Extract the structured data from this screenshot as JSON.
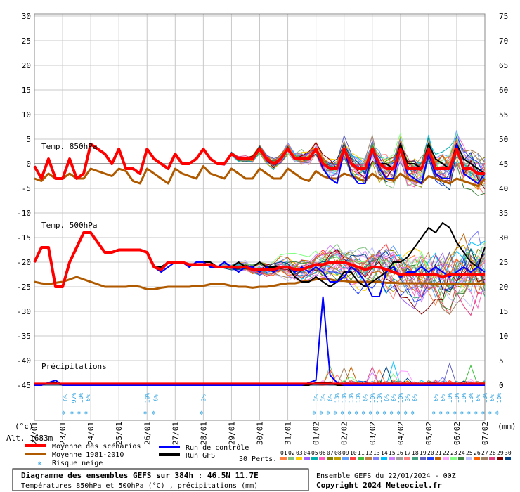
{
  "chart_data": {
    "type": "line",
    "left_axis_ticks": [
      "30",
      "25",
      "20",
      "15",
      "10",
      "5",
      "0",
      "-5",
      "-10",
      "-15",
      "-20",
      "-25",
      "-30",
      "-35",
      "-40",
      "-45"
    ],
    "right_axis_ticks": [
      "75",
      "70",
      "65",
      "60",
      "55",
      "50",
      "45",
      "40",
      "35",
      "30",
      "25",
      "20",
      "15",
      "10",
      "5",
      "0"
    ],
    "ylim_temp": [
      -45,
      30
    ],
    "ylim_precip": [
      0,
      75
    ],
    "left_unit": "(°c)",
    "right_unit": "(mm)",
    "x_tick_labels": [
      "22/01",
      "23/01",
      "24/01",
      "25/01",
      "26/01",
      "27/01",
      "28/01",
      "29/01",
      "30/01",
      "31/01",
      "01/02",
      "02/02",
      "03/02",
      "04/02",
      "05/02",
      "06/02",
      "07/02"
    ],
    "label_850": "Temp. 850hPa",
    "label_500": "Temp. 500hPa",
    "label_precip": "Précipitations",
    "altitude": "Alt. 1683m",
    "snow_labels": [
      {
        "x": 1.1,
        "text": "6%"
      },
      {
        "x": 1.4,
        "text": "97%"
      },
      {
        "x": 1.65,
        "text": "10%"
      },
      {
        "x": 1.9,
        "text": "6%"
      },
      {
        "x": 4.0,
        "text": "10%"
      },
      {
        "x": 4.3,
        "text": "6%"
      },
      {
        "x": 6.0,
        "text": "3%"
      },
      {
        "x": 10.0,
        "text": "3%"
      },
      {
        "x": 10.25,
        "text": "3%"
      },
      {
        "x": 10.5,
        "text": "6%"
      },
      {
        "x": 10.75,
        "text": "13%"
      },
      {
        "x": 11.0,
        "text": "13%"
      },
      {
        "x": 11.25,
        "text": "13%"
      },
      {
        "x": 11.5,
        "text": "10%"
      },
      {
        "x": 11.75,
        "text": "6%"
      },
      {
        "x": 12.0,
        "text": "10%"
      },
      {
        "x": 12.25,
        "text": "13%"
      },
      {
        "x": 12.5,
        "text": "6%"
      },
      {
        "x": 12.75,
        "text": "6%"
      },
      {
        "x": 13.0,
        "text": "10%"
      },
      {
        "x": 13.25,
        "text": "3%"
      },
      {
        "x": 13.5,
        "text": "6%"
      },
      {
        "x": 14.25,
        "text": "6%"
      },
      {
        "x": 14.5,
        "text": "6%"
      },
      {
        "x": 14.75,
        "text": "10%"
      },
      {
        "x": 15.0,
        "text": "10%"
      },
      {
        "x": 15.25,
        "text": "10%"
      },
      {
        "x": 15.5,
        "text": "13%"
      },
      {
        "x": 15.75,
        "text": "6%"
      },
      {
        "x": 16.0,
        "text": "13%"
      },
      {
        "x": 16.25,
        "text": "6%"
      },
      {
        "x": 16.5,
        "text": "10%"
      }
    ],
    "series": [
      {
        "name": "Moyenne des scénarios",
        "color": "#ff0000",
        "width": 4,
        "x850": [
          0,
          0.25,
          0.5,
          0.75,
          1,
          1.25,
          1.5,
          1.75,
          2,
          2.25,
          2.5,
          2.75,
          3,
          3.25,
          3.5,
          3.75,
          4,
          4.25,
          4.5,
          4.75,
          5,
          5.25,
          5.5,
          5.75,
          6,
          6.25,
          6.5,
          6.75,
          7,
          7.25,
          7.5,
          7.75,
          8,
          8.25,
          8.5,
          8.75,
          9,
          9.25,
          9.5,
          9.75,
          10,
          10.25,
          10.5,
          10.75,
          11,
          11.25,
          11.5,
          11.75,
          12,
          12.25,
          12.5,
          12.75,
          13,
          13.25,
          13.5,
          13.75,
          14,
          14.25,
          14.5,
          14.75,
          15,
          15.25,
          15.5,
          15.75,
          16
        ],
        "y850": [
          -0.5,
          -3,
          1,
          -3,
          -3,
          1,
          -3,
          -2,
          4,
          3,
          2,
          0,
          3,
          -1,
          -1,
          -2,
          3,
          1,
          0,
          -1,
          2,
          0,
          0,
          1,
          3,
          1,
          0,
          0,
          2,
          1,
          1,
          1,
          3,
          1,
          0,
          1,
          3,
          1,
          1,
          1,
          3,
          0,
          -1,
          -1,
          3,
          0,
          -1,
          -1,
          3,
          0,
          -1,
          -1,
          3,
          -1,
          -1,
          -1,
          3,
          -1,
          -1,
          -1,
          3,
          -1,
          -1,
          -2,
          -2
        ],
        "y500": [
          -20,
          -17,
          -17,
          -25,
          -25,
          -20,
          -17,
          -14,
          -14,
          -16,
          -18,
          -18,
          -17.5,
          -17.5,
          -17.5,
          -17.5,
          -18,
          -21,
          -21.5,
          -20,
          -20,
          -20,
          -20.5,
          -20.5,
          -20.5,
          -20.5,
          -21,
          -21,
          -21,
          -21,
          -21,
          -21.5,
          -21.5,
          -21.5,
          -21.5,
          -21,
          -21,
          -21.5,
          -21.5,
          -21,
          -20.5,
          -20.5,
          -20,
          -20,
          -20,
          -20.5,
          -21,
          -21.5,
          -21,
          -21,
          -21.5,
          -22,
          -22.5,
          -22.5,
          -22.5,
          -22.5,
          -22.5,
          -22.5,
          -23,
          -22.5,
          -22.5,
          -22.5,
          -22.5,
          -22.5,
          -22.5
        ]
      },
      {
        "name": "Moyenne 1981-2010",
        "color": "#b05a00",
        "width": 3,
        "y850": [
          -3,
          -3.5,
          -2,
          -3,
          -3,
          -2,
          -3,
          -3,
          -1,
          -1.5,
          -2,
          -2.5,
          -1,
          -1.5,
          -3.5,
          -4,
          -1,
          -2,
          -3,
          -4,
          -1,
          -2,
          -2.5,
          -3,
          -0.5,
          -2,
          -2.5,
          -3,
          -1,
          -2,
          -3,
          -3,
          -1,
          -2,
          -3,
          -3,
          -1,
          -2,
          -3,
          -3.5,
          -1.5,
          -2.5,
          -3,
          -3,
          -2,
          -2.5,
          -3,
          -3.5,
          -2,
          -3,
          -3,
          -3.5,
          -2,
          -3,
          -3.5,
          -4,
          -2.5,
          -3,
          -3.5,
          -4,
          -3,
          -3.5,
          -4,
          -4.5,
          -3
        ],
        "y500": [
          -24,
          -24.3,
          -24.5,
          -24.2,
          -24,
          -23.5,
          -23,
          -23.5,
          -24,
          -24.5,
          -25,
          -25,
          -25,
          -25,
          -24.8,
          -25,
          -25.5,
          -25.5,
          -25.2,
          -25,
          -25,
          -25,
          -25,
          -24.8,
          -24.8,
          -24.5,
          -24.5,
          -24.5,
          -24.8,
          -25,
          -25,
          -25.2,
          -25,
          -25,
          -24.8,
          -24.5,
          -24.3,
          -24.3,
          -24,
          -23.8,
          -23.5,
          -23.5,
          -23.5,
          -23.8,
          -23.8,
          -24,
          -24,
          -24,
          -24,
          -24,
          -24.2,
          -24.2,
          -24.3,
          -24.3,
          -24.3,
          -24.3,
          -24.3,
          -24.5,
          -24.5,
          -24.5,
          -24.5,
          -24.5,
          -24.5,
          -24.5,
          -24.5
        ]
      },
      {
        "name": "Run de contrôle",
        "color": "#0000ff",
        "width": 2,
        "y850": [
          -0.5,
          -3,
          1,
          -3,
          -3,
          1,
          -3,
          -2,
          4,
          3,
          2,
          0,
          3,
          -1,
          -1,
          -2,
          3,
          1,
          0,
          -1,
          2,
          0,
          0,
          1,
          3,
          1,
          0,
          0,
          2,
          1,
          1,
          1,
          3,
          1,
          0,
          1,
          3,
          1,
          1,
          1,
          3,
          -1,
          -3,
          -4,
          3,
          -2,
          -4,
          -4,
          3,
          -1,
          -3,
          -3,
          3,
          -2,
          -3,
          -4,
          2,
          -2,
          -3,
          -3,
          4,
          -2,
          -3,
          -4,
          -2
        ],
        "y500": [
          -20,
          -17,
          -17,
          -25,
          -25,
          -20,
          -17,
          -14,
          -14,
          -16,
          -18,
          -18,
          -17.5,
          -17.5,
          -17.5,
          -17.5,
          -18,
          -21,
          -22,
          -21,
          -20,
          -20,
          -21,
          -20,
          -20,
          -21,
          -21,
          -20,
          -21,
          -22,
          -21,
          -21,
          -22,
          -21,
          -22,
          -21,
          -21,
          -22,
          -21,
          -22,
          -21,
          -22,
          -24,
          -24,
          -23,
          -21,
          -22,
          -24,
          -27,
          -27,
          -22,
          -21,
          -23,
          -22,
          -22,
          -21,
          -22,
          -21,
          -22,
          -23,
          -22,
          -21,
          -22,
          -21,
          -22
        ],
        "precip": [
          0,
          0,
          0.5,
          1,
          0,
          0,
          0,
          0,
          0,
          0,
          0,
          0,
          0,
          0,
          0,
          0,
          0,
          0,
          0,
          0,
          0,
          0,
          0,
          0,
          0,
          0,
          0,
          0,
          0,
          0,
          0,
          0,
          0,
          0,
          0,
          0,
          0,
          0,
          0,
          0.5,
          1,
          18,
          2,
          0.5,
          0,
          0,
          0,
          0,
          0,
          0,
          0,
          0,
          0,
          0,
          0,
          0,
          0,
          0,
          0,
          0,
          0,
          0,
          0,
          0,
          0
        ]
      },
      {
        "name": "Run GFS",
        "color": "#000000",
        "width": 2,
        "y850": [
          -0.5,
          -3,
          1,
          -3,
          -3,
          1,
          -3,
          -2,
          4,
          3,
          2,
          0,
          3,
          -1,
          -1,
          -2,
          3,
          1,
          0,
          -1,
          2,
          0,
          0,
          1,
          3,
          1,
          0,
          0,
          2,
          1,
          1,
          1,
          3,
          1,
          0,
          1,
          3,
          1,
          1,
          1,
          3,
          0,
          -1,
          -1,
          3,
          0,
          -1,
          -1,
          3,
          0,
          0,
          -1,
          4,
          0,
          0,
          -1,
          4,
          1,
          0,
          -1,
          4,
          1,
          0,
          -1,
          -2
        ],
        "y500": [
          -20,
          -17,
          -17,
          -25,
          -25,
          -20,
          -17,
          -14,
          -14,
          -16,
          -18,
          -18,
          -17.5,
          -17.5,
          -17.5,
          -17.5,
          -18,
          -21,
          -21,
          -20,
          -20,
          -20,
          -21,
          -20,
          -20,
          -20,
          -21,
          -20,
          -21,
          -20,
          -21,
          -21,
          -20,
          -21,
          -21,
          -21,
          -21,
          -23,
          -24,
          -24,
          -23,
          -24,
          -25,
          -24,
          -22,
          -22,
          -24,
          -25,
          -24,
          -23,
          -22,
          -20,
          -20,
          -19,
          -17,
          -15,
          -13,
          -14,
          -12,
          -13,
          -16,
          -18,
          -20,
          -21,
          -17
        ],
        "precip": [
          0,
          0,
          0.5,
          0.5,
          0,
          0,
          0,
          0,
          0,
          0,
          0,
          0,
          0,
          0,
          0,
          0,
          0,
          0,
          0,
          0,
          0,
          0,
          0,
          0,
          0,
          0,
          0,
          0,
          0,
          0,
          0,
          0,
          0,
          0,
          0,
          0,
          0,
          0,
          0,
          0,
          0.5,
          0.5,
          0.5,
          0,
          0,
          0,
          0,
          0,
          0,
          0,
          0,
          0,
          0,
          0,
          0,
          0,
          0,
          0,
          0,
          0,
          0,
          0,
          0,
          0,
          0
        ]
      }
    ],
    "legend_labels": [
      "Moyenne des scénarios",
      "Moyenne 1981-2010",
      "Run de contrôle",
      "Run GFS",
      "Risque neige"
    ],
    "perts_label": "30 Perts.",
    "pert_numbers": [
      "01",
      "02",
      "03",
      "04",
      "05",
      "06",
      "07",
      "08",
      "09",
      "10",
      "11",
      "12",
      "13",
      "14",
      "15",
      "16",
      "17",
      "18",
      "19",
      "20",
      "21",
      "22",
      "23",
      "24",
      "25",
      "26",
      "27",
      "28",
      "29",
      "30"
    ],
    "pert_colors": [
      "#ff8040",
      "#80c080",
      "#ffd000",
      "#a060ff",
      "#00b0b0",
      "#ff60c0",
      "#808000",
      "#c0a000",
      "#60a0ff",
      "#ff4040",
      "#40c040",
      "#c08040",
      "#8080ff",
      "#00c0ff",
      "#d080ff",
      "#a0a0a0",
      "#ff8080",
      "#40a080",
      "#6060c0",
      "#2040ff",
      "#c06000",
      "#ffa0ff",
      "#80ff80",
      "#408040",
      "#c0c0ff",
      "#ff6000",
      "#a08060",
      "#e04080",
      "#800000",
      "#004080"
    ],
    "title_line1": "Diagramme des ensembles GEFS sur 384h : 46.5N 11.7E",
    "title_line2": "Températures 850hPa et 500hPa (°C) , précipitations (mm)",
    "run_info": "Ensemble GEFS du 22/01/2024 - 00Z",
    "copyright": "Copyright 2024 Meteociel.fr"
  }
}
